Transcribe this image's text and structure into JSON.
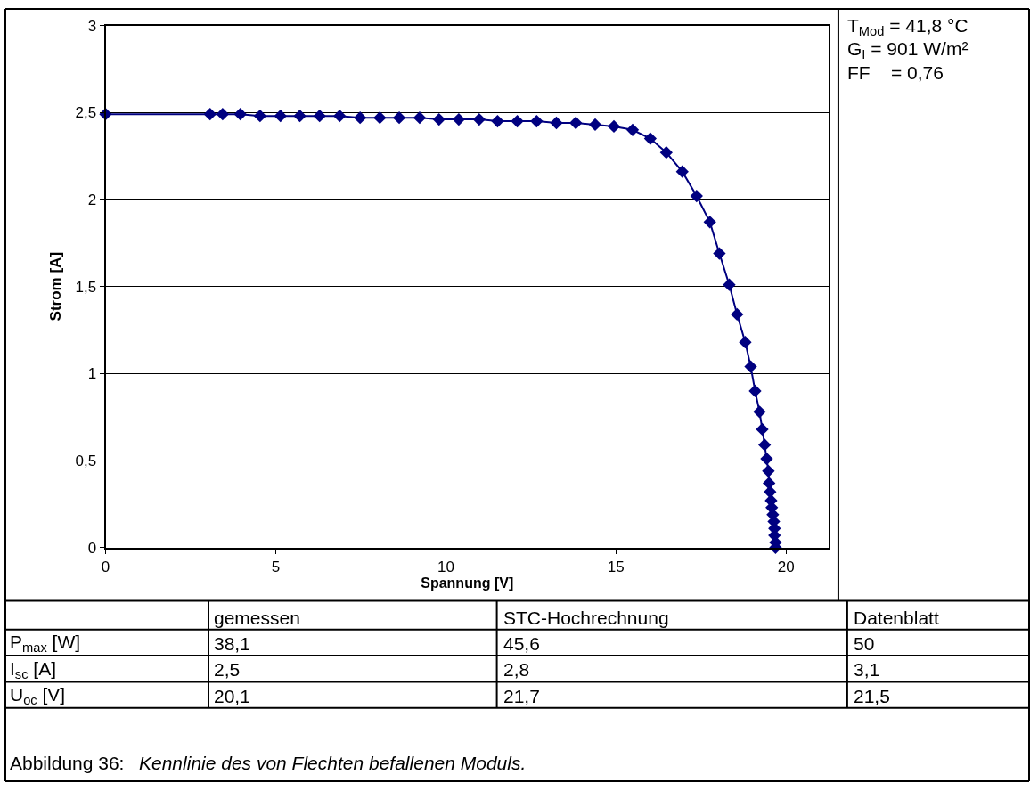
{
  "chart_data": {
    "type": "line",
    "xlabel": "Spannung [V]",
    "ylabel": "Strom [A]",
    "x": [
      0,
      3.07,
      3.44,
      3.96,
      4.54,
      5.14,
      5.71,
      6.29,
      6.88,
      7.48,
      8.06,
      8.63,
      9.23,
      9.8,
      10.38,
      10.98,
      11.52,
      12.1,
      12.67,
      13.25,
      13.82,
      14.39,
      14.94,
      15.49,
      16.01,
      16.48,
      16.95,
      17.37,
      17.76,
      18.04,
      18.33,
      18.56,
      18.8,
      18.96,
      19.09,
      19.22,
      19.3,
      19.37,
      19.43,
      19.48,
      19.5,
      19.53,
      19.56,
      19.58,
      19.61,
      19.64,
      19.66,
      19.66,
      19.69,
      19.69
    ],
    "series": [
      {
        "color": "#000080",
        "values": [
          2.49,
          2.49,
          2.49,
          2.49,
          2.48,
          2.48,
          2.48,
          2.48,
          2.48,
          2.47,
          2.47,
          2.47,
          2.47,
          2.46,
          2.46,
          2.46,
          2.45,
          2.45,
          2.45,
          2.44,
          2.44,
          2.43,
          2.42,
          2.4,
          2.35,
          2.27,
          2.16,
          2.02,
          1.87,
          1.69,
          1.51,
          1.34,
          1.18,
          1.04,
          0.9,
          0.78,
          0.68,
          0.59,
          0.51,
          0.44,
          0.37,
          0.32,
          0.27,
          0.23,
          0.19,
          0.15,
          0.11,
          0.07,
          0.03,
          0
        ]
      }
    ],
    "xlim": [
      0,
      21.25
    ],
    "xticks": [
      0,
      5,
      10,
      15,
      20
    ],
    "ylim": [
      0,
      3
    ],
    "yticks": [
      0,
      {
        "value": 0.5,
        "label": "0,5"
      },
      1,
      {
        "value": 1.5,
        "label": "1,5"
      },
      2,
      {
        "value": 2.5,
        "label": "2,5"
      },
      3
    ],
    "grid": "y",
    "marker": "diamond",
    "line_style": "solid",
    "annotations": [
      "T$_{Mod}$ = 41,8 °C",
      "G$_{I}$ = 901 W/m²",
      "FF    = 0,76",
      "gemessen",
      "STC-Hochrechnung",
      "Datenblatt",
      "P$_{max}$ [W]",
      "38,1",
      "45,6",
      "50",
      "I$_{sc}$ [A]",
      "2,5",
      "2,8",
      "3,1",
      "U$_{oc}$ [V]",
      "20,1",
      "21,7",
      "21,5",
      "Abbildung 36:",
      "Kennlinie des von Flechten befallenen Moduls."
    ]
  }
}
